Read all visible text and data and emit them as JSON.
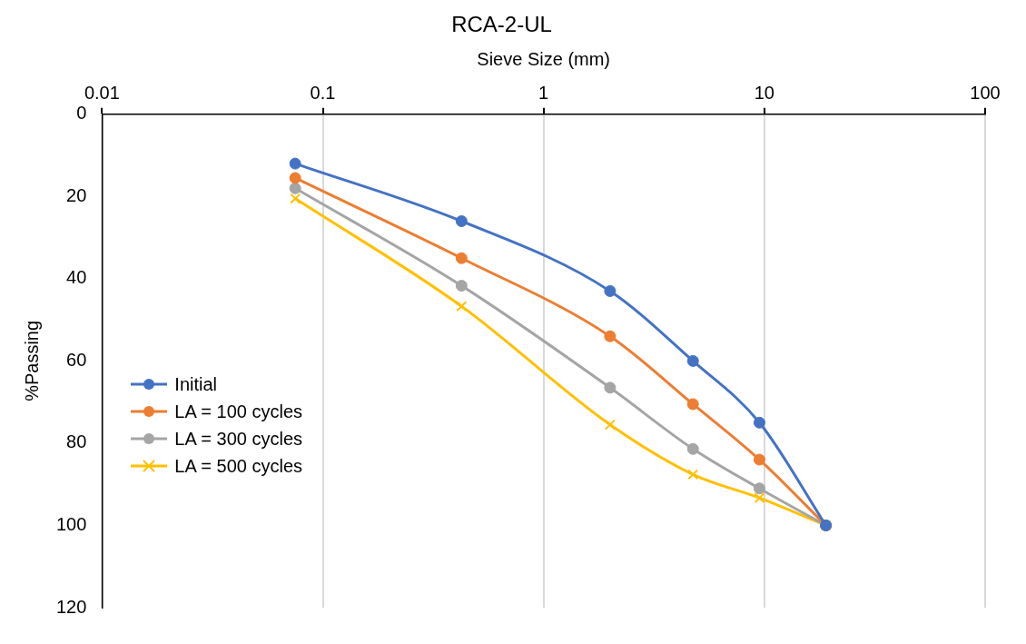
{
  "chart_data": {
    "type": "line",
    "title": "RCA-2-UL",
    "xlabel": "Sieve Size (mm)",
    "ylabel": "%Passing",
    "x": [
      0.075,
      0.425,
      2,
      4.75,
      9.5,
      19
    ],
    "series": [
      {
        "name": "Initial",
        "color": "#4472c4",
        "marker": "circle",
        "values": [
          12,
          26,
          43,
          60,
          75,
          100
        ]
      },
      {
        "name": "LA = 100 cycles",
        "color": "#ed7d31",
        "marker": "circle",
        "values": [
          15.5,
          35,
          54,
          70.5,
          84,
          100
        ]
      },
      {
        "name": "LA = 300 cycles",
        "color": "#a5a5a5",
        "marker": "circle",
        "values": [
          18,
          41.7,
          66.5,
          81.4,
          91,
          100
        ]
      },
      {
        "name": "LA = 500 cycles",
        "color": "#ffc000",
        "marker": "cross",
        "values": [
          20.5,
          46.7,
          75.5,
          87.6,
          93.3,
          100
        ]
      }
    ],
    "log": "x",
    "xlim": [
      0.01,
      100
    ],
    "xticks": [
      0.01,
      0.1,
      1,
      10,
      100
    ],
    "ylim": [
      120,
      0
    ],
    "yticks": [
      0,
      20,
      40,
      60,
      80,
      100,
      120
    ],
    "grid": "x",
    "legend": "left",
    "line_style": "solid"
  }
}
